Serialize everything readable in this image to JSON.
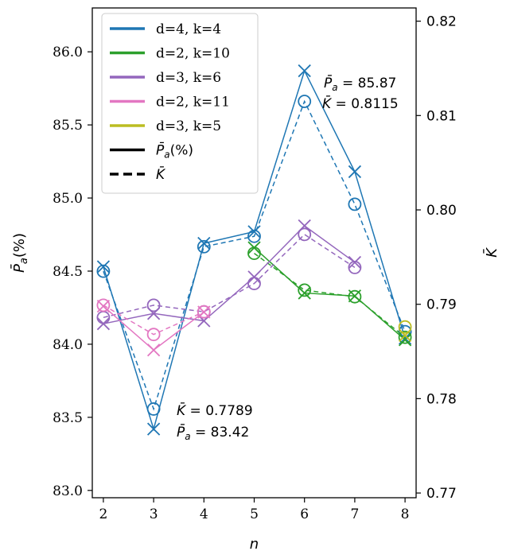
{
  "chart_data": {
    "type": "line",
    "x_label": "n",
    "y_left_label": "P̄a(%)",
    "y_right_label": "K̄",
    "x_ticks": [
      2,
      3,
      4,
      5,
      6,
      7,
      8
    ],
    "y_left_ticks": [
      "83.0",
      "83.5",
      "84.0",
      "84.5",
      "85.0",
      "85.5",
      "86.0"
    ],
    "y_right_ticks": [
      "0.77",
      "0.78",
      "0.79",
      "0.80",
      "0.81",
      "0.82"
    ],
    "y_left_lim": [
      82.95,
      86.3
    ],
    "y_right_lim": [
      0.7695,
      0.8214
    ],
    "legend_position": "upper-left",
    "legend": [
      {
        "label": "d=4, k=4",
        "color": "#1f77b4",
        "style": "solid"
      },
      {
        "label": "d=2, k=10",
        "color": "#2ca02c",
        "style": "solid"
      },
      {
        "label": "d=3, k=6",
        "color": "#9467bd",
        "style": "solid"
      },
      {
        "label": "d=2, k=11",
        "color": "#e377c2",
        "style": "solid"
      },
      {
        "label": "d=3, k=5",
        "color": "#bcbd22",
        "style": "solid"
      },
      {
        "label": "P̄a(%)",
        "color": "#000000",
        "style": "solid"
      },
      {
        "label": "K̄",
        "color": "#000000",
        "style": "dashed"
      }
    ],
    "series": [
      {
        "name": "d=4, k=4",
        "color": "#1f77b4",
        "x": [
          2,
          3,
          4,
          5,
          6,
          7,
          8
        ],
        "pa": [
          84.53,
          83.42,
          84.69,
          84.77,
          85.87,
          85.18,
          84.04
        ],
        "kappa": [
          0.7935,
          0.7789,
          0.7961,
          0.7972,
          0.8115,
          0.8006,
          0.7871
        ]
      },
      {
        "name": "d=2, k=10",
        "color": "#2ca02c",
        "x": [
          5,
          6,
          7,
          8
        ],
        "pa": [
          84.66,
          84.35,
          84.33,
          84.03
        ],
        "kappa": [
          0.7954,
          0.7915,
          0.7908,
          0.7865
        ]
      },
      {
        "name": "d=3, k=6",
        "color": "#9467bd",
        "x": [
          2,
          3,
          4,
          5,
          6,
          7
        ],
        "pa": [
          84.14,
          84.21,
          84.16,
          84.46,
          84.81,
          84.56
        ],
        "kappa": [
          0.7886,
          0.7899,
          0.7892,
          0.7922,
          0.7974,
          0.7939
        ]
      },
      {
        "name": "d=2, k=11",
        "color": "#e377c2",
        "x": [
          2,
          3,
          4
        ],
        "pa": [
          84.26,
          83.96,
          84.22
        ],
        "kappa": [
          0.7899,
          0.7868,
          0.7892
        ]
      },
      {
        "name": "d=3, k=5",
        "color": "#bcbd22",
        "x": [
          8
        ],
        "pa": [
          84.06
        ],
        "kappa": [
          0.7876
        ]
      }
    ],
    "annotations": [
      {
        "id": "max",
        "lines": [
          "P̄a = 85.87",
          "K̄ = 0.8115"
        ]
      },
      {
        "id": "min",
        "lines": [
          "K̄ = 0.7789",
          "P̄a = 83.42"
        ]
      }
    ]
  }
}
